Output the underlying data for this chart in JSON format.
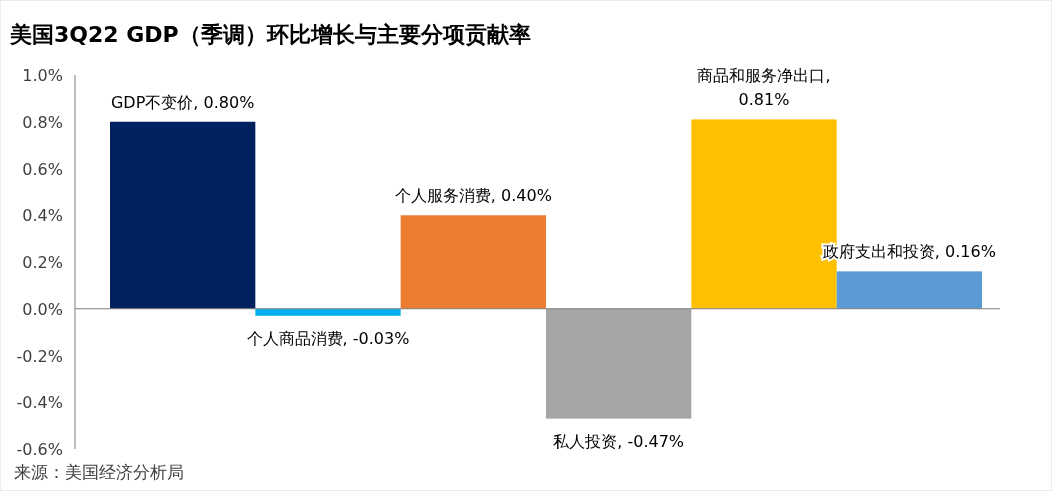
{
  "chart_data": {
    "type": "bar",
    "title": "美国3Q22 GDP（季调）环比增长与主要分项贡献率",
    "categories": [
      null,
      null,
      null,
      null,
      null,
      null
    ],
    "values": [
      0.8,
      -0.03,
      0.4,
      -0.47,
      0.81,
      0.16
    ],
    "colors": [
      "#002060",
      "#00b0f0",
      "#ed7d31",
      "#a5a5a5",
      "#ffc000",
      "#5b9bd5"
    ],
    "value_labels": [
      "GDP不变价, 0.80%",
      "个人商品消费, -0.03%",
      "个人服务消费, 0.40%",
      "私人投资, -0.47%",
      "商品和服务净出口,\n0.81%",
      "政府支出和投资, 0.16%"
    ],
    "ylim": [
      -0.6,
      1.0
    ],
    "yticks": [
      {
        "value": -0.6,
        "label": "-0.6%"
      },
      {
        "value": -0.4,
        "label": "-0.4%"
      },
      {
        "value": -0.2,
        "label": "-0.2%"
      },
      {
        "value": 0,
        "label": "0.0%"
      },
      {
        "value": 0.2,
        "label": "0.2%"
      },
      {
        "value": 0.4,
        "label": "0.4%"
      },
      {
        "value": 0.6,
        "label": "0.6%"
      },
      {
        "value": 0.8,
        "label": "0.8%"
      },
      {
        "value": 1.0,
        "label": "1.0%"
      }
    ],
    "annotations": [
      "来源：美国经济分析局"
    ]
  }
}
